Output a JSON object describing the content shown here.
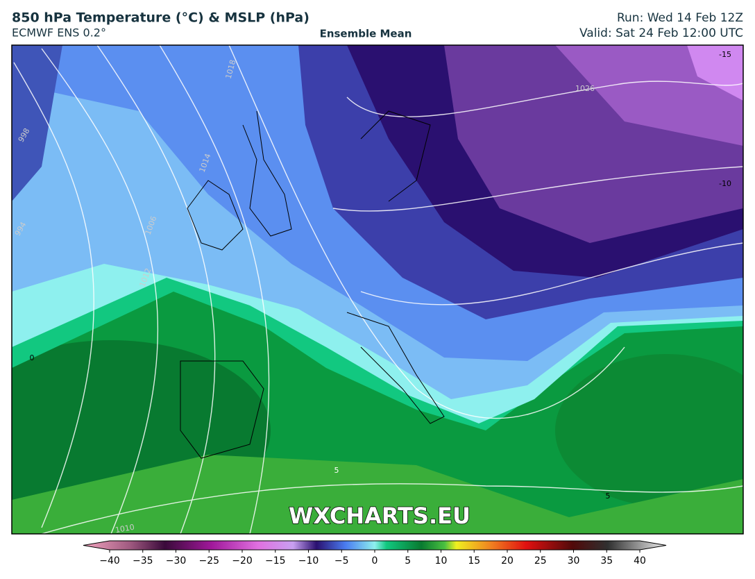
{
  "header": {
    "title": "850 hPa Temperature (°C) & MSLP (hPa)",
    "subtitle": "ECMWF ENS 0.2°",
    "center": "Ensemble Mean",
    "run": "Run: Wed 14 Feb 12Z",
    "valid": "Valid: Sat 24 Feb 12:00 UTC"
  },
  "map": {
    "watermark": "WXCHARTS.EU",
    "contour_labels": [
      "1018",
      "1014",
      "998",
      "994",
      "1006",
      "1012",
      "1026",
      "1010",
      "-15",
      "-10",
      "0",
      "5",
      "5"
    ]
  },
  "colorbar": {
    "range": [
      -40,
      40
    ],
    "ticks": [
      {
        "value": -40,
        "label": "−40"
      },
      {
        "value": -35,
        "label": "−35"
      },
      {
        "value": -30,
        "label": "−30"
      },
      {
        "value": -25,
        "label": "−25"
      },
      {
        "value": -20,
        "label": "−20"
      },
      {
        "value": -15,
        "label": "−15"
      },
      {
        "value": -10,
        "label": "−10"
      },
      {
        "value": -5,
        "label": "−5"
      },
      0,
      5,
      10,
      15,
      20,
      25,
      30,
      35,
      40
    ]
  }
}
